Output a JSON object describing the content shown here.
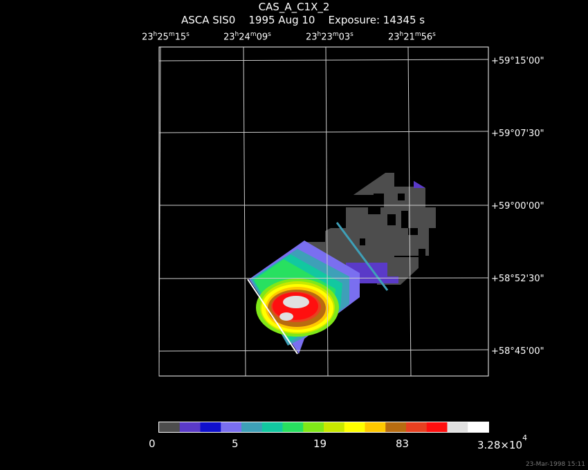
{
  "title": {
    "line1": "CAS_A_C1X_2",
    "line2": "ASCA SIS0    1995 Aug 10    Exposure: 14345 s"
  },
  "ra_labels": [
    {
      "h": "23",
      "hu": "h",
      "m": "25",
      "mu": "m",
      "s": "15",
      "su": "s"
    },
    {
      "h": "23",
      "hu": "h",
      "m": "24",
      "mu": "m",
      "s": "09",
      "su": "s"
    },
    {
      "h": "23",
      "hu": "h",
      "m": "23",
      "mu": "m",
      "s": "03",
      "su": "s"
    },
    {
      "h": "23",
      "hu": "h",
      "m": "21",
      "mu": "m",
      "s": "56",
      "su": "s"
    }
  ],
  "dec_labels": [
    "+59°15'00\"",
    "+59°07'30\"",
    "+59°00'00\"",
    "+58°52'30\"",
    "+58°45'00\""
  ],
  "colorbar": {
    "colors": [
      "#4d4d4d",
      "#5a3ac8",
      "#1010cc",
      "#7a6ff0",
      "#3ea0b8",
      "#12c8a0",
      "#28e060",
      "#80e818",
      "#c8e800",
      "#ffff00",
      "#ffc800",
      "#b86c10",
      "#e84020",
      "#ff0f0f",
      "#e0e0e0",
      "#ffffff"
    ],
    "tick_labels": [
      "0",
      "5",
      "19",
      "83"
    ],
    "max_label_mantissa": "3.28×10",
    "max_label_exp": "4"
  },
  "timestamp": "23-Mar-1998 15:11"
}
